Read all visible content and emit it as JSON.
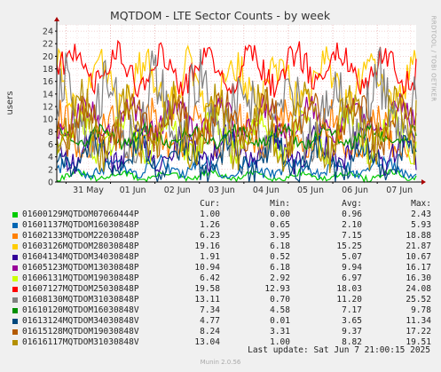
{
  "chart_data": {
    "type": "line",
    "title": "MQTDOM - LTE Sector Counts - by week",
    "ylabel": "users",
    "ylim": [
      0,
      25
    ],
    "yticks": [
      0,
      2,
      4,
      6,
      8,
      10,
      12,
      14,
      16,
      18,
      20,
      22,
      24
    ],
    "x_range": [
      "2025-05-30 19:00",
      "2025-06-07 21:00"
    ],
    "xticks": [
      {
        "label": "31 May",
        "date": "2025-05-31"
      },
      {
        "label": "01 Jun",
        "date": "2025-06-01"
      },
      {
        "label": "02 Jun",
        "date": "2025-06-02"
      },
      {
        "label": "03 Jun",
        "date": "2025-06-03"
      },
      {
        "label": "04 Jun",
        "date": "2025-06-04"
      },
      {
        "label": "05 Jun",
        "date": "2025-06-05"
      },
      {
        "label": "06 Jun",
        "date": "2025-06-06"
      },
      {
        "label": "07 Jun",
        "date": "2025-06-07"
      }
    ],
    "grid": true,
    "legend_placement": "bottom",
    "series": [
      {
        "name": "01600129MQTDOM07060444P",
        "color": "#00cc00",
        "cur": "1.00",
        "min": "0.00",
        "avg": "0.96",
        "max": "2.43"
      },
      {
        "name": "01601137MQTDOM16030848P",
        "color": "#0066b3",
        "cur": "1.26",
        "min": "0.65",
        "avg": "2.10",
        "max": "5.93"
      },
      {
        "name": "01602133MQTDOM22030848P",
        "color": "#ff8000",
        "cur": "6.23",
        "min": "3.95",
        "avg": "7.15",
        "max": "18.88"
      },
      {
        "name": "01603126MQTDOM28030848P",
        "color": "#ffcc00",
        "cur": "19.16",
        "min": "6.18",
        "avg": "15.25",
        "max": "21.87"
      },
      {
        "name": "01604134MQTDOM34030848P",
        "color": "#330099",
        "cur": "1.91",
        "min": "0.52",
        "avg": "5.07",
        "max": "10.67"
      },
      {
        "name": "01605123MQTDOM13030848P",
        "color": "#990099",
        "cur": "10.94",
        "min": "6.18",
        "avg": "9.94",
        "max": "16.17"
      },
      {
        "name": "01606131MQTDOM19030848P",
        "color": "#ccff00",
        "cur": "6.42",
        "min": "2.92",
        "avg": "6.97",
        "max": "16.30"
      },
      {
        "name": "01607127MQTDOM25030848P",
        "color": "#ff0000",
        "cur": "19.58",
        "min": "12.93",
        "avg": "18.03",
        "max": "24.08"
      },
      {
        "name": "01608130MQTDOM31030848P",
        "color": "#808080",
        "cur": "13.11",
        "min": "0.70",
        "avg": "11.20",
        "max": "25.52"
      },
      {
        "name": "01610120MQTDOM16030848V",
        "color": "#008f00",
        "cur": "7.34",
        "min": "4.58",
        "avg": "7.17",
        "max": "9.78"
      },
      {
        "name": "01613124MQTDOM34030848V",
        "color": "#00487d",
        "cur": "4.77",
        "min": "0.01",
        "avg": "3.65",
        "max": "11.34"
      },
      {
        "name": "01615128MQTDOM19030848V",
        "color": "#b35a00",
        "cur": "8.24",
        "min": "3.31",
        "avg": "9.37",
        "max": "17.22"
      },
      {
        "name": "01616117MQTDOM31030848V",
        "color": "#b38f00",
        "cur": "13.04",
        "min": "1.00",
        "avg": "8.82",
        "max": "19.51"
      }
    ]
  },
  "legend_headers": {
    "cur": "Cur:",
    "min": "Min:",
    "avg": "Avg:",
    "max": "Max:"
  },
  "last_update": "Last update: Sat Jun  7 21:00:15 2025",
  "footer": "Munin 2.0.56",
  "side_label": "RRDTOOL / TOBI OETIKER"
}
